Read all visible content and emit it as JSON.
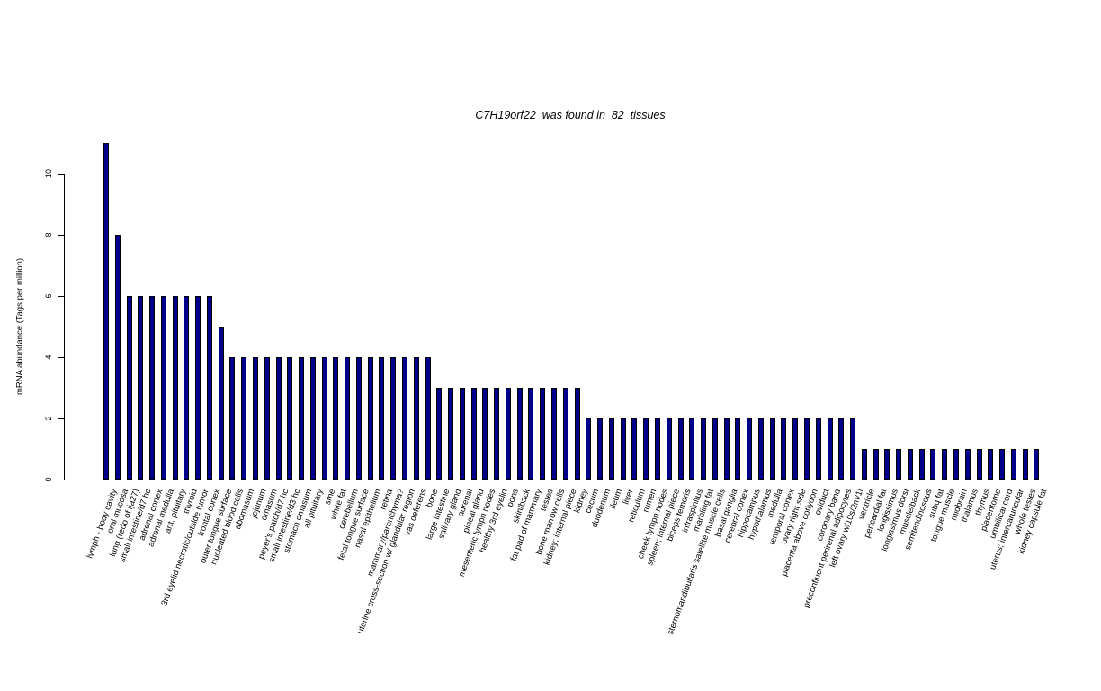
{
  "chart_data": {
    "type": "bar",
    "title": "C7H19orf22  was found in  82  tissues",
    "gene": "C7H19orf22",
    "tissue_count": 82,
    "xlabel": "",
    "ylabel": "mRNA abundance (Tags per million)",
    "ylim": [
      0,
      11
    ],
    "yticks": [
      0,
      2,
      4,
      6,
      8,
      10
    ],
    "grid": false,
    "legend": "none",
    "bar_color": "#00008B",
    "bar_border_color": "#000000",
    "background_color": "#ffffff",
    "categories": [
      "lymph - body cavity",
      "oral mucosa",
      "lung (redo of lja27)",
      "small intestine/d7 hc",
      "adrenal cortex",
      "adrenal medulla",
      "ant. pituitary",
      "thyroid",
      "3rd eyelid necrotic/outside tumor",
      "frontal cortex",
      "outer tongue surface",
      "nucleated blood cells",
      "abomasum",
      "jejunum",
      "omasum",
      "peyer's patch/d7 hc",
      "small intestine/d3 hc",
      "stomach omasum",
      "all pituitary",
      "sme",
      "white fat",
      "cerebellum",
      "fetal tongue surface",
      "nasal epithelium",
      "retina",
      "mammary/parenchyma?",
      "uterine cross-section w/ glandular region",
      "vas deferens",
      "bone",
      "large intestine",
      "salivary gland",
      "adrenal",
      "pineal gland",
      "mesenteric lymph nodes",
      "healthy 3rd eyelid",
      "pons",
      "skin/back",
      "fat pad of mammary",
      "testes",
      "bone marrow cells",
      "kidney; internal piece",
      "kidney",
      "cecum",
      "duodenum",
      "ileum",
      "liver",
      "reticulum",
      "rumen",
      "cheek lymph nodes",
      "spleen; internal piece",
      "biceps femoris",
      "infraspinitus",
      "marbling fat",
      "sternomandibuilaris satellite muscle cells",
      "basal ganglia",
      "cerebral cortex",
      "hippocampus",
      "hypothalamus",
      "medulla",
      "temporal cortex",
      "ovary right side",
      "placenta above cotlydon",
      "oviduct",
      "coronary band",
      "preconfluent perirenal adipocytes",
      "left ovary w/10s/2m/1l",
      "ventricle",
      "pericardial fat",
      "longissimus",
      "longissimus dorsi",
      "muscle/back",
      "semitendinosous",
      "subq fat",
      "tongue muscle",
      "midbrain",
      "thalamus",
      "thymus",
      "placentome",
      "umbilical cord",
      "uterus; intercaruncular",
      "whole testes",
      "kidney capsule fat"
    ],
    "values": [
      11,
      8,
      6,
      6,
      6,
      6,
      6,
      6,
      6,
      6,
      5,
      4,
      4,
      4,
      4,
      4,
      4,
      4,
      4,
      4,
      4,
      4,
      4,
      4,
      4,
      4,
      4,
      4,
      4,
      3,
      3,
      3,
      3,
      3,
      3,
      3,
      3,
      3,
      3,
      3,
      3,
      3,
      2,
      2,
      2,
      2,
      2,
      2,
      2,
      2,
      2,
      2,
      2,
      2,
      2,
      2,
      2,
      2,
      2,
      2,
      2,
      2,
      2,
      2,
      2,
      2,
      1,
      1,
      1,
      1,
      1,
      1,
      1,
      1,
      1,
      1,
      1,
      1,
      1,
      1,
      1,
      1
    ]
  }
}
